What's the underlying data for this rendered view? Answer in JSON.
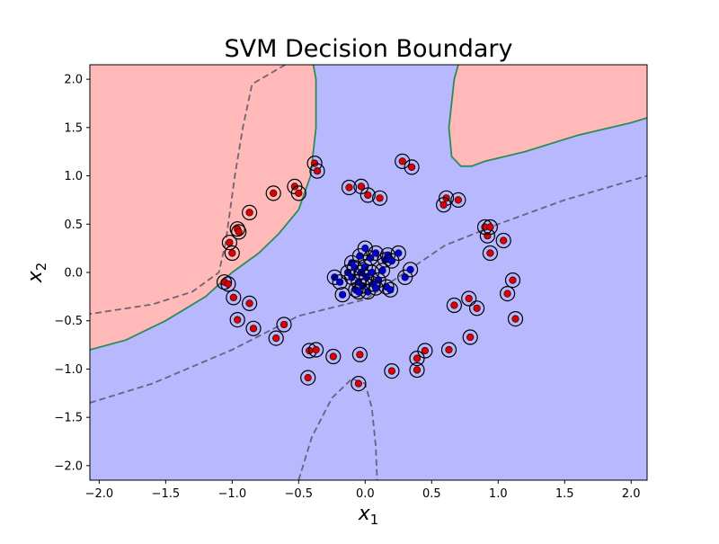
{
  "chart_data": {
    "type": "scatter",
    "title": "SVM Decision Boundary",
    "xlabel": {
      "base": "x",
      "sub": "1"
    },
    "ylabel": {
      "base": "x",
      "sub": "2"
    },
    "xlim": [
      -2.07,
      2.12
    ],
    "ylim": [
      -2.15,
      2.15
    ],
    "xticks": [
      -2.0,
      -1.5,
      -1.0,
      -0.5,
      0.0,
      0.5,
      1.0,
      1.5,
      2.0
    ],
    "yticks": [
      -2.0,
      -1.5,
      -1.0,
      -0.5,
      0.0,
      0.5,
      1.0,
      1.5,
      2.0
    ],
    "xtick_labels": [
      "−2.0",
      "−1.5",
      "−1.0",
      "−0.5",
      "0.0",
      "0.5",
      "1.0",
      "1.5",
      "2.0"
    ],
    "ytick_labels": [
      "−2.0",
      "−1.5",
      "−1.0",
      "−0.5",
      "0.0",
      "0.5",
      "1.0",
      "1.5",
      "2.0"
    ],
    "colors": {
      "class_pos_region": "#ffb9b9",
      "class_neg_region": "#b8b8ff",
      "class_pos_point": "#dd0000",
      "class_neg_point": "#0000dd",
      "boundary": "#2e8b57",
      "margin": "#555566"
    },
    "decision_regions": {
      "positive_top_left": [
        [
          -2.07,
          2.15
        ],
        [
          -0.39,
          2.15
        ],
        [
          -0.37,
          2.0
        ],
        [
          -0.37,
          1.5
        ],
        [
          -0.41,
          1.0
        ],
        [
          -0.5,
          0.65
        ],
        [
          -0.65,
          0.4
        ],
        [
          -0.8,
          0.2
        ],
        [
          -1.0,
          0.0
        ],
        [
          -1.2,
          -0.25
        ],
        [
          -1.5,
          -0.5
        ],
        [
          -1.8,
          -0.7
        ],
        [
          -2.07,
          -0.8
        ]
      ],
      "positive_top_right": [
        [
          0.7,
          2.15
        ],
        [
          2.12,
          2.15
        ],
        [
          2.12,
          1.6
        ],
        [
          2.0,
          1.55
        ],
        [
          1.6,
          1.42
        ],
        [
          1.2,
          1.25
        ],
        [
          0.9,
          1.15
        ],
        [
          0.8,
          1.1
        ],
        [
          0.72,
          1.1
        ],
        [
          0.65,
          1.2
        ],
        [
          0.63,
          1.5
        ],
        [
          0.67,
          2.0
        ]
      ]
    },
    "boundary_curves": [
      [
        [
          -0.39,
          2.15
        ],
        [
          -0.37,
          2.0
        ],
        [
          -0.37,
          1.5
        ],
        [
          -0.41,
          1.0
        ],
        [
          -0.5,
          0.65
        ],
        [
          -0.65,
          0.4
        ],
        [
          -0.8,
          0.2
        ],
        [
          -1.0,
          0.0
        ],
        [
          -1.2,
          -0.25
        ],
        [
          -1.5,
          -0.5
        ],
        [
          -1.8,
          -0.7
        ],
        [
          -2.07,
          -0.8
        ]
      ],
      [
        [
          0.7,
          2.15
        ],
        [
          0.67,
          2.0
        ],
        [
          0.63,
          1.5
        ],
        [
          0.65,
          1.2
        ],
        [
          0.72,
          1.1
        ],
        [
          0.8,
          1.1
        ],
        [
          0.9,
          1.15
        ],
        [
          1.2,
          1.25
        ],
        [
          1.6,
          1.42
        ],
        [
          2.0,
          1.55
        ],
        [
          2.12,
          1.6
        ]
      ]
    ],
    "margin_curves": [
      [
        [
          -0.6,
          2.15
        ],
        [
          -0.85,
          1.95
        ],
        [
          -0.92,
          1.5
        ],
        [
          -0.98,
          1.0
        ],
        [
          -1.02,
          0.6
        ],
        [
          -1.05,
          0.3
        ],
        [
          -1.1,
          0.0
        ],
        [
          -1.3,
          -0.2
        ],
        [
          -1.6,
          -0.33
        ],
        [
          -2.07,
          -0.43
        ]
      ],
      [
        [
          -2.07,
          -1.35
        ],
        [
          -1.6,
          -1.15
        ],
        [
          -1.0,
          -0.8
        ],
        [
          -0.5,
          -0.45
        ],
        [
          0.0,
          -0.28
        ],
        [
          0.3,
          0.0
        ],
        [
          0.6,
          0.28
        ],
        [
          1.0,
          0.5
        ],
        [
          1.5,
          0.75
        ],
        [
          2.12,
          1.0
        ]
      ],
      [
        [
          -0.5,
          -2.15
        ],
        [
          -0.4,
          -1.7
        ],
        [
          -0.25,
          -1.3
        ],
        [
          -0.1,
          -1.1
        ],
        [
          0.0,
          -1.15
        ],
        [
          0.05,
          -1.4
        ],
        [
          0.08,
          -1.8
        ],
        [
          0.09,
          -2.15
        ]
      ]
    ],
    "series": [
      {
        "name": "",
        "class": "positive",
        "points": [
          [
            -0.38,
            1.13
          ],
          [
            -0.36,
            1.05
          ],
          [
            -0.53,
            0.89
          ],
          [
            -0.5,
            0.82
          ],
          [
            -0.69,
            0.82
          ],
          [
            -0.87,
            0.62
          ],
          [
            -0.96,
            0.45
          ],
          [
            -0.95,
            0.42
          ],
          [
            -1.02,
            0.31
          ],
          [
            -1.0,
            0.2
          ],
          [
            -1.06,
            -0.1
          ],
          [
            -1.03,
            -0.12
          ],
          [
            -0.99,
            -0.26
          ],
          [
            -0.87,
            -0.32
          ],
          [
            -0.96,
            -0.49
          ],
          [
            -0.84,
            -0.58
          ],
          [
            -0.61,
            -0.54
          ],
          [
            -0.67,
            -0.68
          ],
          [
            -0.42,
            -0.81
          ],
          [
            -0.37,
            -0.8
          ],
          [
            -0.24,
            -0.87
          ],
          [
            -0.43,
            -1.09
          ],
          [
            -0.04,
            -0.85
          ],
          [
            -0.05,
            -1.15
          ],
          [
            0.2,
            -1.02
          ],
          [
            0.39,
            -1.01
          ],
          [
            0.39,
            -0.89
          ],
          [
            0.45,
            -0.81
          ],
          [
            0.63,
            -0.8
          ],
          [
            0.79,
            -0.67
          ],
          [
            0.67,
            -0.34
          ],
          [
            0.78,
            -0.27
          ],
          [
            0.84,
            -0.37
          ],
          [
            1.07,
            -0.22
          ],
          [
            1.11,
            -0.08
          ],
          [
            1.13,
            -0.48
          ],
          [
            0.94,
            0.2
          ],
          [
            1.04,
            0.33
          ],
          [
            0.92,
            0.38
          ],
          [
            0.9,
            0.47
          ],
          [
            0.94,
            0.47
          ],
          [
            0.7,
            0.75
          ],
          [
            0.61,
            0.77
          ],
          [
            0.59,
            0.7
          ],
          [
            0.28,
            1.15
          ],
          [
            0.35,
            1.09
          ],
          [
            0.11,
            0.77
          ],
          [
            0.02,
            0.8
          ],
          [
            -0.03,
            0.89
          ],
          [
            -0.12,
            0.88
          ]
        ]
      },
      {
        "name": "",
        "class": "negative",
        "points": [
          [
            -0.23,
            -0.05
          ],
          [
            -0.19,
            -0.1
          ],
          [
            -0.17,
            -0.23
          ],
          [
            -0.13,
            0.0
          ],
          [
            -0.1,
            0.1
          ],
          [
            -0.1,
            -0.05
          ],
          [
            -0.08,
            0.05
          ],
          [
            -0.07,
            -0.18
          ],
          [
            -0.05,
            -0.1
          ],
          [
            -0.04,
            0.17
          ],
          [
            -0.03,
            0.0
          ],
          [
            -0.02,
            -0.14
          ],
          [
            0.0,
            0.25
          ],
          [
            0.0,
            0.06
          ],
          [
            0.01,
            -0.05
          ],
          [
            0.02,
            -0.2
          ],
          [
            0.04,
            0.15
          ],
          [
            0.05,
            0.0
          ],
          [
            0.06,
            -0.12
          ],
          [
            0.08,
            0.2
          ],
          [
            0.1,
            -0.08
          ],
          [
            0.13,
            0.02
          ],
          [
            0.15,
            0.13
          ],
          [
            0.16,
            -0.15
          ],
          [
            0.17,
            0.18
          ],
          [
            0.2,
            0.12
          ],
          [
            0.25,
            0.2
          ],
          [
            0.3,
            -0.05
          ],
          [
            0.34,
            0.03
          ],
          [
            0.19,
            -0.18
          ],
          [
            -0.05,
            -0.2
          ],
          [
            0.08,
            -0.16
          ]
        ]
      }
    ]
  }
}
